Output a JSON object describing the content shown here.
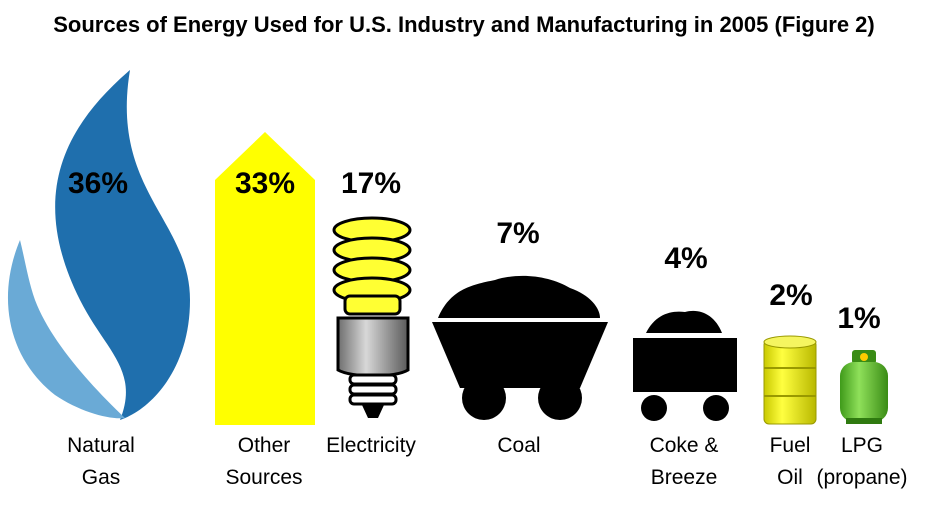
{
  "title": "Sources of Energy Used for U.S. Industry and Manufacturing in 2005 (Figure 2)",
  "chart_data": {
    "type": "bar",
    "title": "Sources of Energy Used for U.S. Industry and Manufacturing in 2005 (Figure 2)",
    "unit": "%",
    "categories": [
      "Natural Gas",
      "Other Sources",
      "Electricity",
      "Coal",
      "Coke & Breeze",
      "Fuel Oil",
      "LPG (propane)"
    ],
    "values": [
      36,
      33,
      17,
      7,
      4,
      2,
      1
    ],
    "items": [
      {
        "value": "36%",
        "label_lines": [
          "Natural",
          "Gas"
        ],
        "icon": "flame-icon",
        "color": "#1f6fad"
      },
      {
        "value": "33%",
        "label_lines": [
          "Other",
          "Sources"
        ],
        "icon": "arrow-icon",
        "color": "#ffff00"
      },
      {
        "value": "17%",
        "label_lines": [
          "Electricity"
        ],
        "icon": "light-bulb-icon",
        "color": "#ffff33"
      },
      {
        "value": "7%",
        "label_lines": [
          "Coal"
        ],
        "icon": "coal-cart-icon",
        "color": "#000000"
      },
      {
        "value": "4%",
        "label_lines": [
          "Coke &",
          "Breeze"
        ],
        "icon": "coke-cart-icon",
        "color": "#000000"
      },
      {
        "value": "2%",
        "label_lines": [
          "Fuel",
          "Oil"
        ],
        "icon": "oil-barrel-icon",
        "color": "#e8e800"
      },
      {
        "value": "1%",
        "label_lines": [
          "LPG",
          "(propane)"
        ],
        "icon": "propane-tank-icon",
        "color": "#5cb82e"
      }
    ]
  }
}
